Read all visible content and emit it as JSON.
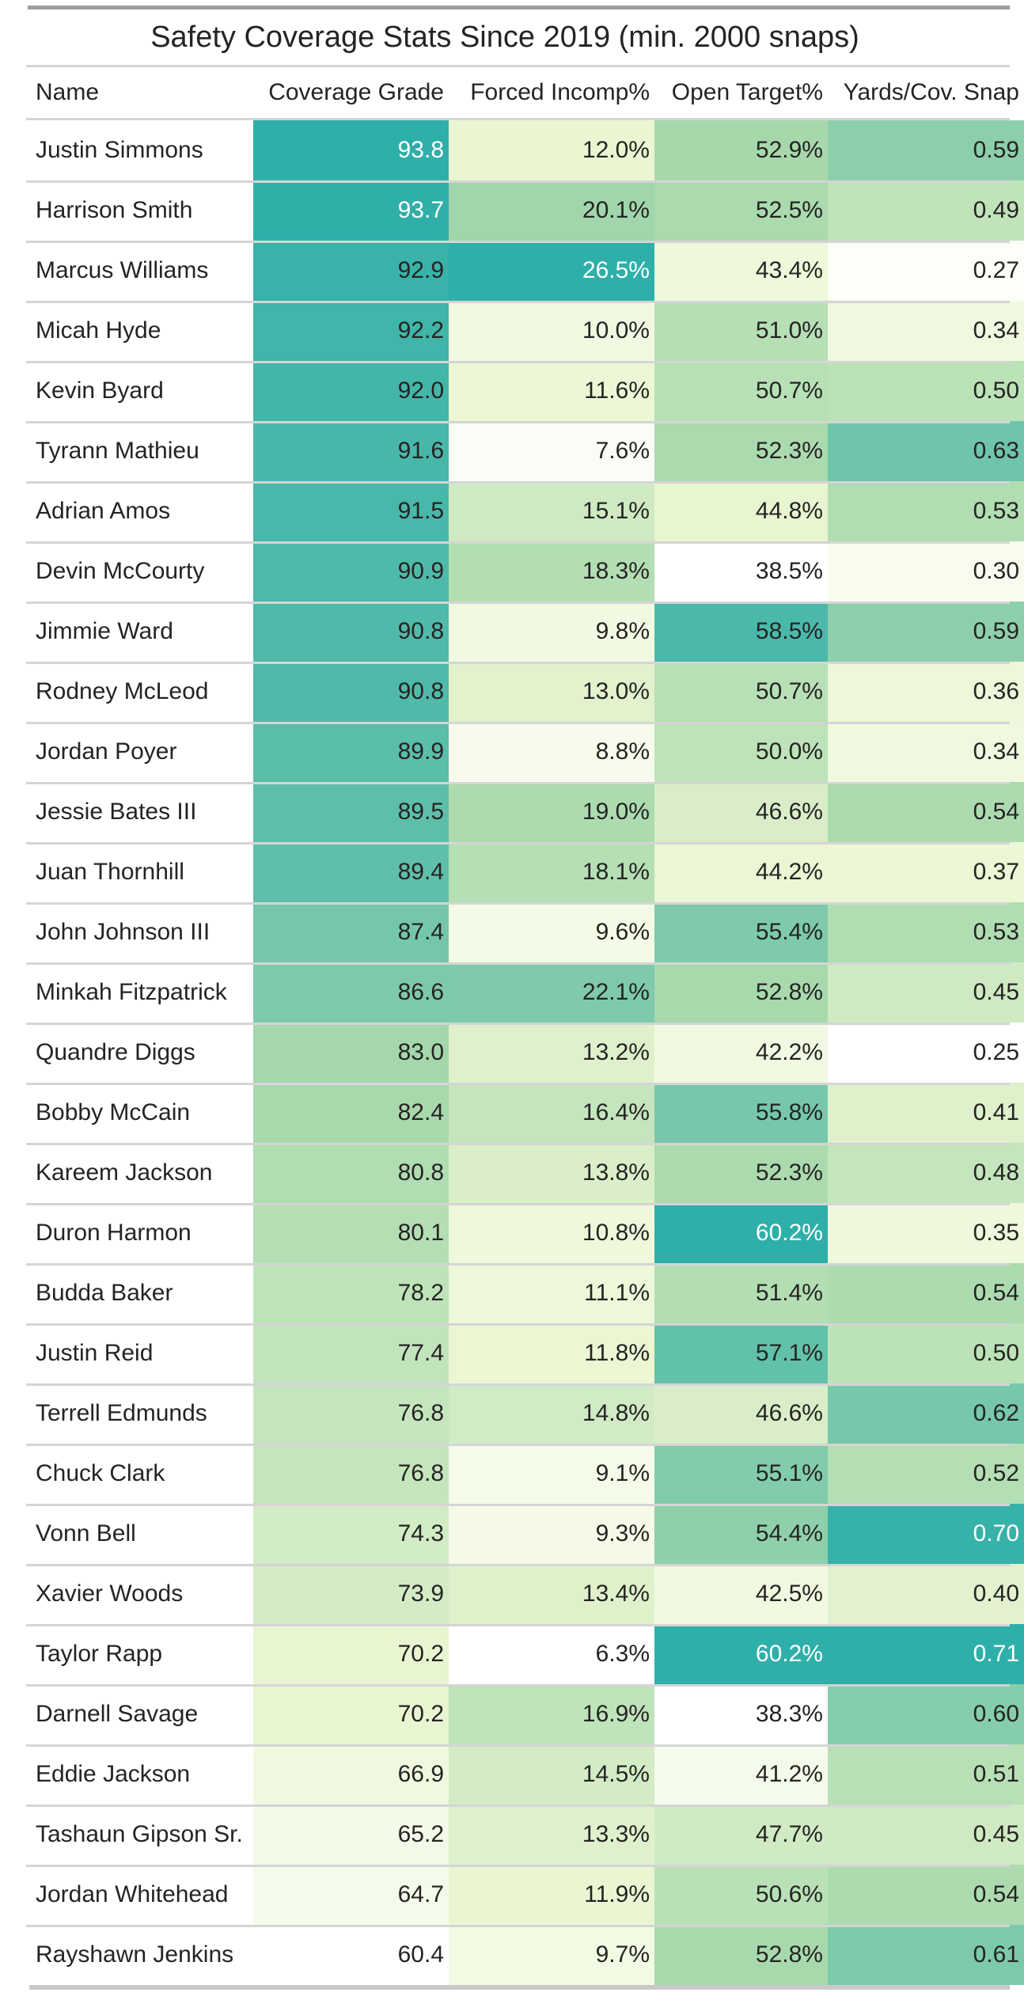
{
  "title": "Safety Coverage Stats Since 2019 (min. 2000 snaps)",
  "table": {
    "columns": [
      {
        "key": "name",
        "label": "Name",
        "align": "left",
        "type": "text"
      },
      {
        "key": "grade",
        "label": "Coverage Grade",
        "align": "right",
        "type": "heat"
      },
      {
        "key": "forced",
        "label": "Forced Incomp%",
        "align": "right",
        "type": "heat"
      },
      {
        "key": "open",
        "label": "Open Target%",
        "align": "right",
        "type": "heat"
      },
      {
        "key": "yards",
        "label": "Yards/Cov. Snap",
        "align": "right",
        "type": "heat"
      }
    ],
    "rows": [
      {
        "name": "Justin Simmons",
        "values": [
          "93.8",
          "12.0%",
          "52.9%",
          "0.59"
        ]
      },
      {
        "name": "Harrison Smith",
        "values": [
          "93.7",
          "20.1%",
          "52.5%",
          "0.49"
        ]
      },
      {
        "name": "Marcus Williams",
        "values": [
          "92.9",
          "26.5%",
          "43.4%",
          "0.27"
        ]
      },
      {
        "name": "Micah Hyde",
        "values": [
          "92.2",
          "10.0%",
          "51.0%",
          "0.34"
        ]
      },
      {
        "name": "Kevin Byard",
        "values": [
          "92.0",
          "11.6%",
          "50.7%",
          "0.50"
        ]
      },
      {
        "name": "Tyrann Mathieu",
        "values": [
          "91.6",
          "7.6%",
          "52.3%",
          "0.63"
        ]
      },
      {
        "name": "Adrian Amos",
        "values": [
          "91.5",
          "15.1%",
          "44.8%",
          "0.53"
        ]
      },
      {
        "name": "Devin McCourty",
        "values": [
          "90.9",
          "18.3%",
          "38.5%",
          "0.30"
        ]
      },
      {
        "name": "Jimmie Ward",
        "values": [
          "90.8",
          "9.8%",
          "58.5%",
          "0.59"
        ]
      },
      {
        "name": "Rodney McLeod",
        "values": [
          "90.8",
          "13.0%",
          "50.7%",
          "0.36"
        ]
      },
      {
        "name": "Jordan Poyer",
        "values": [
          "89.9",
          "8.8%",
          "50.0%",
          "0.34"
        ]
      },
      {
        "name": "Jessie Bates III",
        "values": [
          "89.5",
          "19.0%",
          "46.6%",
          "0.54"
        ]
      },
      {
        "name": "Juan Thornhill",
        "values": [
          "89.4",
          "18.1%",
          "44.2%",
          "0.37"
        ]
      },
      {
        "name": "John Johnson III",
        "values": [
          "87.4",
          "9.6%",
          "55.4%",
          "0.53"
        ]
      },
      {
        "name": "Minkah Fitzpatrick",
        "values": [
          "86.6",
          "22.1%",
          "52.8%",
          "0.45"
        ]
      },
      {
        "name": "Quandre Diggs",
        "values": [
          "83.0",
          "13.2%",
          "42.2%",
          "0.25"
        ]
      },
      {
        "name": "Bobby McCain",
        "values": [
          "82.4",
          "16.4%",
          "55.8%",
          "0.41"
        ]
      },
      {
        "name": "Kareem Jackson",
        "values": [
          "80.8",
          "13.8%",
          "52.3%",
          "0.48"
        ]
      },
      {
        "name": "Duron Harmon",
        "values": [
          "80.1",
          "10.8%",
          "60.2%",
          "0.35"
        ]
      },
      {
        "name": "Budda Baker",
        "values": [
          "78.2",
          "11.1%",
          "51.4%",
          "0.54"
        ]
      },
      {
        "name": "Justin Reid",
        "values": [
          "77.4",
          "11.8%",
          "57.1%",
          "0.50"
        ]
      },
      {
        "name": "Terrell Edmunds",
        "values": [
          "76.8",
          "14.8%",
          "46.6%",
          "0.62"
        ]
      },
      {
        "name": "Chuck Clark",
        "values": [
          "76.8",
          "9.1%",
          "55.1%",
          "0.52"
        ]
      },
      {
        "name": "Vonn Bell",
        "values": [
          "74.3",
          "9.3%",
          "54.4%",
          "0.70"
        ]
      },
      {
        "name": "Xavier Woods",
        "values": [
          "73.9",
          "13.4%",
          "42.5%",
          "0.40"
        ]
      },
      {
        "name": "Taylor Rapp",
        "values": [
          "70.2",
          "6.3%",
          "60.2%",
          "0.71"
        ]
      },
      {
        "name": "Darnell Savage",
        "values": [
          "70.2",
          "16.9%",
          "38.3%",
          "0.60"
        ]
      },
      {
        "name": "Eddie Jackson",
        "values": [
          "66.9",
          "14.5%",
          "41.2%",
          "0.51"
        ]
      },
      {
        "name": "Tashaun Gipson Sr.",
        "values": [
          "65.2",
          "13.3%",
          "47.7%",
          "0.45"
        ]
      },
      {
        "name": "Jordan Whitehead",
        "values": [
          "64.7",
          "11.9%",
          "50.6%",
          "0.54"
        ]
      },
      {
        "name": "Rayshawn Jenkins",
        "values": [
          "60.4",
          "9.7%",
          "52.8%",
          "0.61"
        ]
      }
    ]
  },
  "heat_scale": {
    "stops": [
      {
        "t": 0,
        "color": "#FFFFFF"
      },
      {
        "t": 0.28,
        "color": "#EAF6D2"
      },
      {
        "t": 0.67,
        "color": "#A6D8AC"
      },
      {
        "t": 1,
        "color": "#2FAFA9"
      }
    ],
    "text_dark": "#252423",
    "text_light": "#FFFFFF"
  }
}
